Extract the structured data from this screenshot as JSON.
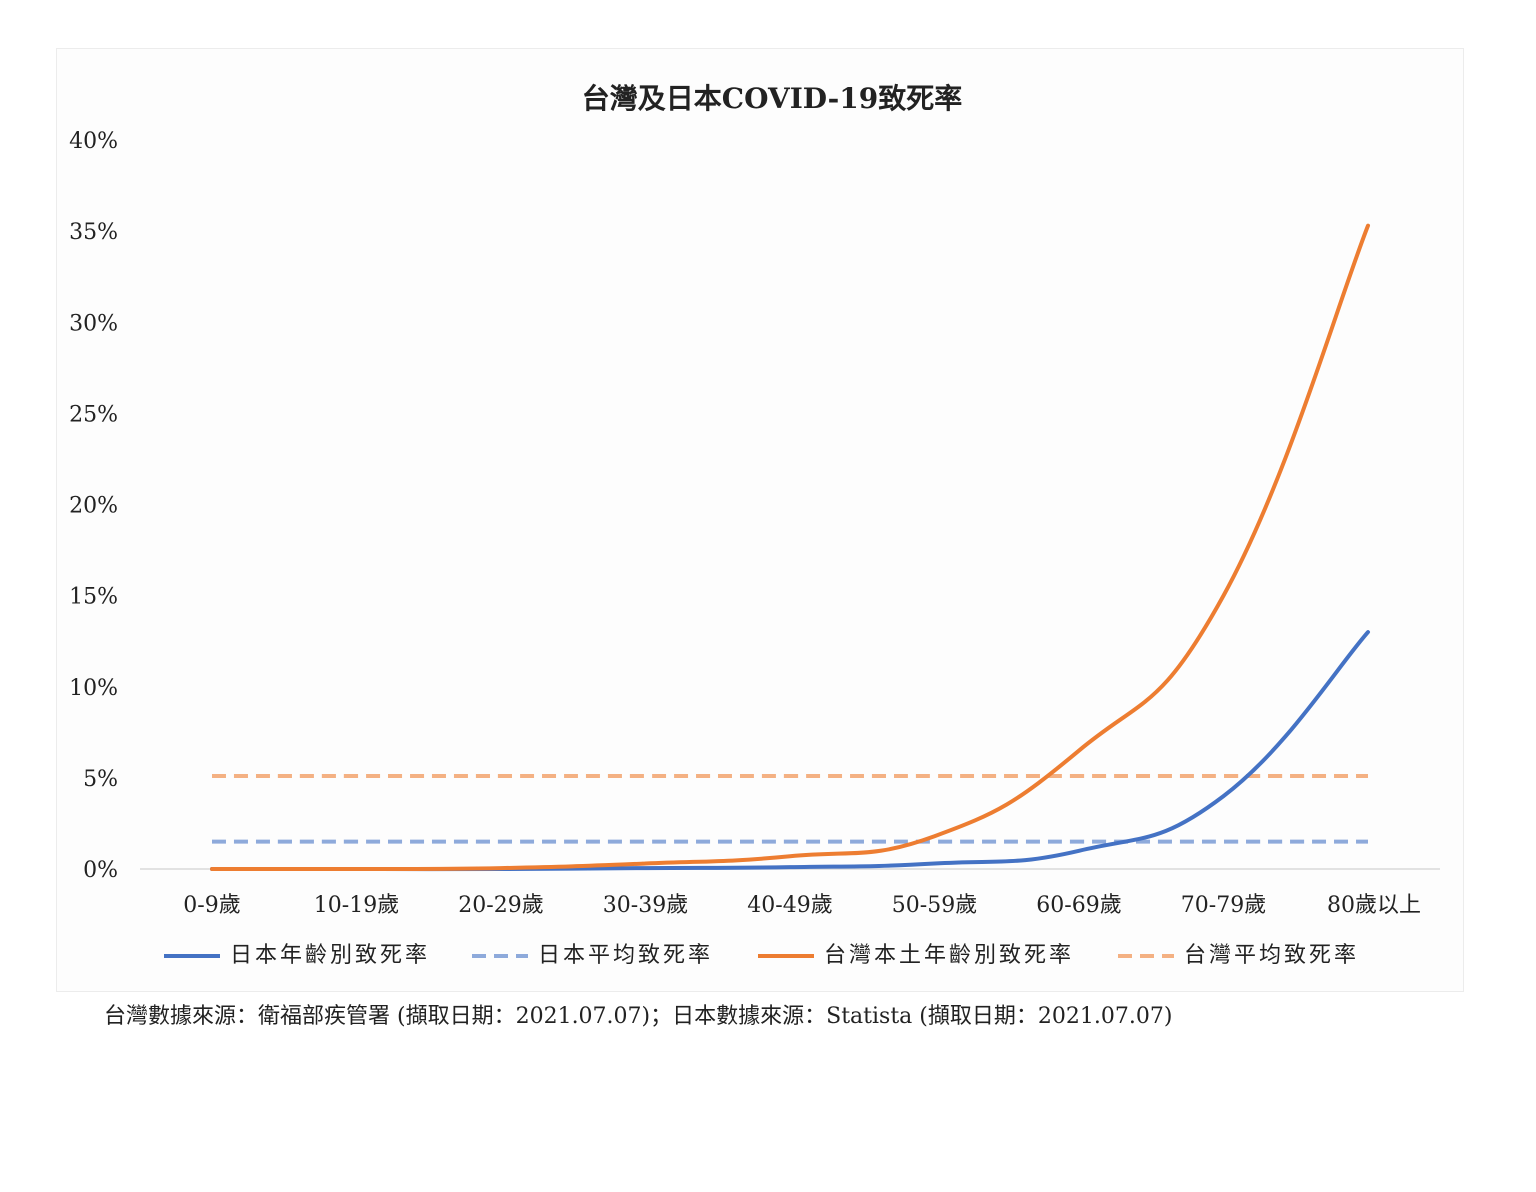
{
  "chart_data": {
    "type": "line",
    "title": "台灣及日本COVID-19致死率",
    "xlabel": "",
    "ylabel": "",
    "categories": [
      "0-9歲",
      "10-19歲",
      "20-29歲",
      "30-39歲",
      "40-49歲",
      "50-59歲",
      "60-69歲",
      "70-79歲",
      "80歲以上"
    ],
    "y_ticks": [
      "0%",
      "5%",
      "10%",
      "15%",
      "20%",
      "25%",
      "30%",
      "35%",
      "40%"
    ],
    "ylim": [
      0,
      40
    ],
    "grid": false,
    "legend_position": "bottom",
    "series": [
      {
        "name": "日本年齡別致死率",
        "style": "solid",
        "color": "#4472c4",
        "values": [
          0.0,
          0.0,
          0.0,
          0.05,
          0.1,
          0.3,
          1.0,
          4.0,
          13.0
        ]
      },
      {
        "name": "日本平均致死率",
        "style": "dashed",
        "color": "#8eaadb",
        "values": [
          1.5,
          1.5,
          1.5,
          1.5,
          1.5,
          1.5,
          1.5,
          1.5,
          1.5
        ]
      },
      {
        "name": "台灣本土年齡別致死率",
        "style": "solid",
        "color": "#ed7d31",
        "values": [
          0.0,
          0.0,
          0.05,
          0.3,
          0.7,
          1.8,
          6.5,
          15.0,
          35.3
        ]
      },
      {
        "name": "台灣平均致死率",
        "style": "dashed",
        "color": "#f4b183",
        "values": [
          5.1,
          5.1,
          5.1,
          5.1,
          5.1,
          5.1,
          5.1,
          5.1,
          5.1
        ]
      }
    ]
  },
  "source_note": "台灣數據來源：衛福部疾管署 (擷取日期：2021.07.07)；日本數據來源：Statista (擷取日期：2021.07.07)"
}
